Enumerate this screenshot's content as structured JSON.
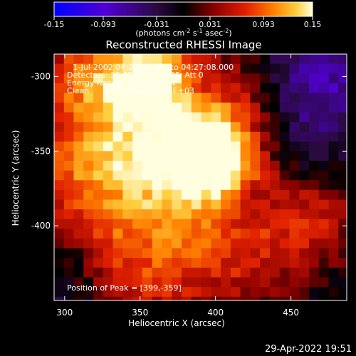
{
  "colorbar": {
    "ticks": [
      "-0.15",
      "-0.093",
      "-0.031",
      "0.031",
      "0.093",
      "0.15"
    ],
    "unit_main": "(photons cm",
    "unit_sup1": "-2",
    "unit_mid": " s",
    "unit_sup2": "-1",
    "unit_mid2": " asec",
    "unit_sup3": "-2",
    "unit_end": ")",
    "range": [
      -0.15,
      0.15
    ],
    "colors": [
      "#0000ff",
      "#5a00c8",
      "#2a0a40",
      "#000000",
      "#8a0000",
      "#e02000",
      "#ff8000",
      "#ffd040",
      "#ffffe0"
    ]
  },
  "chart_data": {
    "type": "heatmap",
    "title": "Reconstructed RHESSI Image",
    "xlabel": "Heliocentric X (arcsec)",
    "ylabel": "Heliocentric Y (arcsec)",
    "xlim": [
      293,
      487
    ],
    "ylim": [
      -450,
      -285
    ],
    "x_ticks": [
      "300",
      "350",
      "400",
      "450"
    ],
    "y_ticks": [
      "-300",
      "-350",
      "-400"
    ],
    "x_tick_values": [
      300,
      350,
      400,
      450
    ],
    "y_tick_values": [
      -300,
      -350,
      -400
    ],
    "annotations": {
      "time": "1-Jul-2002 04:25:44.000 to 04:27:08.000",
      "detectors": "Detectors: 3F 4F 5F 6F 7F 8F, Att 0",
      "energy": "Energy Range: 3.0 - 6.0 keV",
      "clean": "Clean",
      "counts": "Total counts: 9.23E+03",
      "peak": "Position of Peak = [399,-359]"
    },
    "peak": [
      399,
      -359
    ],
    "peak_value": 0.15
  },
  "footer": {
    "timestamp": "29-Apr-2022 19:51"
  }
}
